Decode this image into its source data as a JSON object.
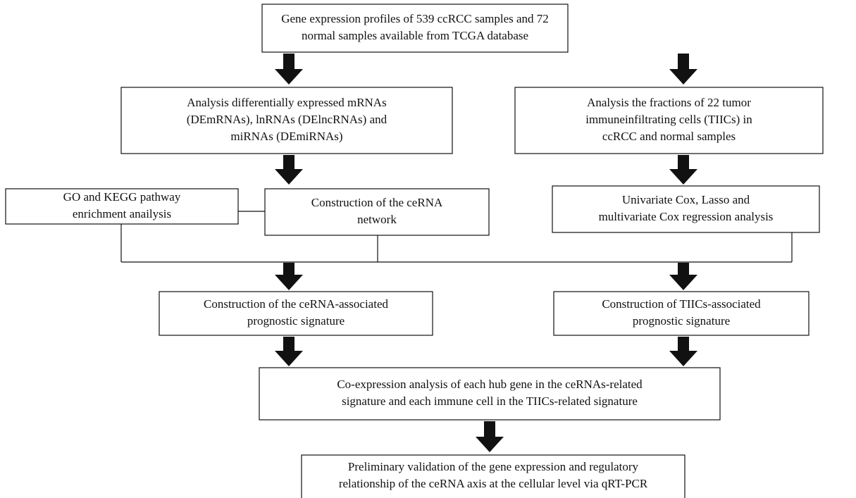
{
  "nodes": [
    {
      "lines": [
        "Gene expression profiles of 539 ccRCC samples and 72",
        "normal samples available from TCGA database"
      ]
    },
    {
      "lines": [
        "Analysis differentially expressed mRNAs",
        "(DEmRNAs), lnRNAs (DElncRNAs) and",
        "miRNAs (DEmiRNAs)"
      ]
    },
    {
      "lines": [
        "Analysis the fractions of 22 tumor",
        "immuneinfiltrating cells (TIICs) in",
        "ccRCC and normal samples"
      ]
    },
    {
      "lines": [
        "GO and KEGG pathway",
        "enrichment anailysis"
      ]
    },
    {
      "lines": [
        "Construction of the ceRNA",
        "network"
      ]
    },
    {
      "lines": [
        "Univariate Cox, Lasso and",
        "multivariate Cox regression analysis"
      ]
    },
    {
      "lines": [
        "Construction of the ceRNA-associated",
        "prognostic signature"
      ]
    },
    {
      "lines": [
        "Construction of TIICs-associated",
        "prognostic signature"
      ]
    },
    {
      "lines": [
        "Co-expression analysis of each hub gene in the ceRNAs-related",
        "signature and each immune cell in the TIICs-related signature"
      ]
    },
    {
      "lines": [
        "Preliminary validation of the gene expression and regulatory",
        "relationship of the ceRNA axis at the cellular level via qRT-PCR"
      ]
    }
  ]
}
